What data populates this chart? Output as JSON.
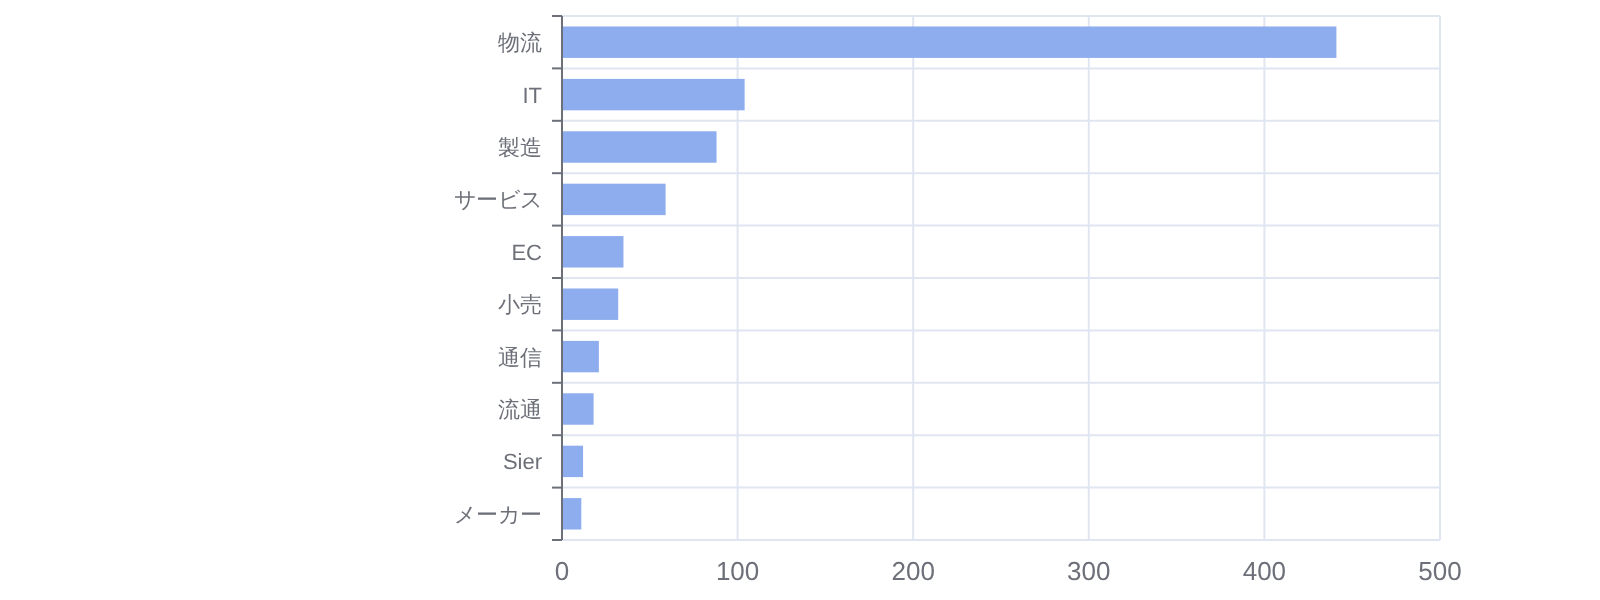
{
  "chart_data": {
    "type": "bar",
    "orientation": "horizontal",
    "categories": [
      "物流",
      "IT",
      "製造",
      "サービス",
      "EC",
      "小売",
      "通信",
      "流通",
      "Sier",
      "メーカー"
    ],
    "values": [
      441,
      104,
      88,
      59,
      35,
      32,
      21,
      18,
      12,
      11
    ],
    "color": "#8eadee",
    "xlim": [
      0,
      500
    ],
    "xticks": [
      0,
      100,
      200,
      300,
      400,
      500
    ],
    "grid": true
  }
}
